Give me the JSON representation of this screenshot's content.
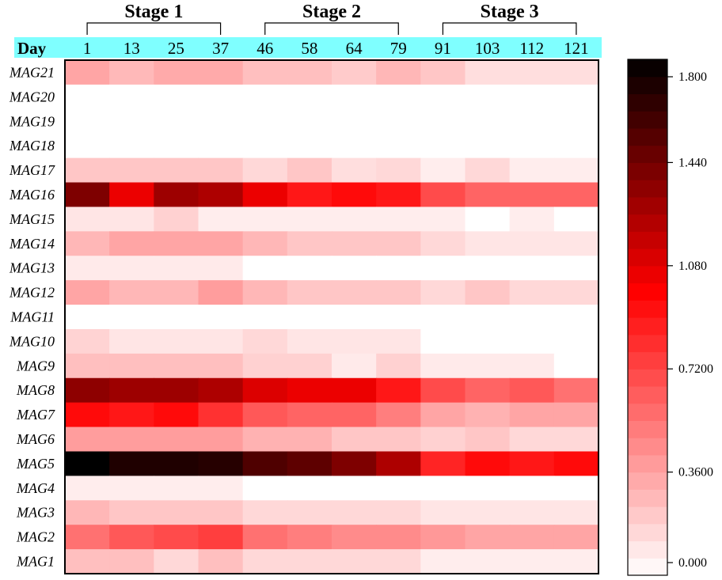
{
  "chart_data": {
    "type": "heatmap",
    "header_title": "Day",
    "stages": [
      {
        "label": "Stage 1",
        "from": 0,
        "to": 3
      },
      {
        "label": "Stage 2",
        "from": 4,
        "to": 7
      },
      {
        "label": "Stage 3",
        "from": 8,
        "to": 11
      }
    ],
    "x": [
      "1",
      "13",
      "25",
      "37",
      "46",
      "58",
      "64",
      "79",
      "91",
      "103",
      "112",
      "121"
    ],
    "y": [
      "MAG21",
      "MAG20",
      "MAG19",
      "MAG18",
      "MAG17",
      "MAG16",
      "MAG15",
      "MAG14",
      "MAG13",
      "MAG12",
      "MAG11",
      "MAG10",
      "MAG9",
      "MAG8",
      "MAG7",
      "MAG6",
      "MAG5",
      "MAG4",
      "MAG3",
      "MAG2",
      "MAG1"
    ],
    "values": [
      [
        0.35,
        0.27,
        0.33,
        0.33,
        0.25,
        0.25,
        0.2,
        0.28,
        0.22,
        0.13,
        0.13,
        0.13
      ],
      [
        0,
        0,
        0,
        0,
        0,
        0,
        0,
        0,
        0,
        0,
        0,
        0
      ],
      [
        0,
        0,
        0,
        0,
        0,
        0,
        0,
        0,
        0,
        0,
        0,
        0
      ],
      [
        0,
        0,
        0,
        0,
        0,
        0,
        0,
        0,
        0,
        0,
        0,
        0
      ],
      [
        0.22,
        0.22,
        0.22,
        0.22,
        0.15,
        0.22,
        0.13,
        0.15,
        0.07,
        0.15,
        0.07,
        0.07
      ],
      [
        1.4,
        1.05,
        1.3,
        1.25,
        1.05,
        0.9,
        0.95,
        0.9,
        0.7,
        0.6,
        0.6,
        0.6
      ],
      [
        0.1,
        0.1,
        0.18,
        0.07,
        0.07,
        0.07,
        0.07,
        0.07,
        0.07,
        0.0,
        0.07,
        0.0
      ],
      [
        0.28,
        0.35,
        0.35,
        0.35,
        0.28,
        0.22,
        0.22,
        0.22,
        0.15,
        0.1,
        0.1,
        0.1
      ],
      [
        0.08,
        0.08,
        0.08,
        0.08,
        0,
        0,
        0,
        0,
        0,
        0,
        0,
        0
      ],
      [
        0.35,
        0.28,
        0.28,
        0.38,
        0.28,
        0.22,
        0.22,
        0.22,
        0.15,
        0.22,
        0.15,
        0.15
      ],
      [
        0,
        0,
        0,
        0,
        0,
        0,
        0,
        0,
        0,
        0,
        0,
        0
      ],
      [
        0.17,
        0.1,
        0.1,
        0.1,
        0.15,
        0.1,
        0.1,
        0.1,
        0,
        0,
        0,
        0
      ],
      [
        0.25,
        0.25,
        0.25,
        0.25,
        0.18,
        0.18,
        0.08,
        0.18,
        0.08,
        0.08,
        0.08,
        0.0
      ],
      [
        1.35,
        1.3,
        1.3,
        1.25,
        1.1,
        1.05,
        1.05,
        0.9,
        0.7,
        0.6,
        0.65,
        0.55
      ],
      [
        0.95,
        0.9,
        0.95,
        0.8,
        0.65,
        0.6,
        0.6,
        0.5,
        0.35,
        0.3,
        0.35,
        0.35
      ],
      [
        0.38,
        0.38,
        0.38,
        0.38,
        0.3,
        0.3,
        0.22,
        0.22,
        0.18,
        0.22,
        0.15,
        0.15
      ],
      [
        1.8,
        1.7,
        1.7,
        1.68,
        1.55,
        1.5,
        1.4,
        1.25,
        0.85,
        0.95,
        0.9,
        0.95
      ],
      [
        0.07,
        0.07,
        0.07,
        0.07,
        0,
        0,
        0,
        0,
        0,
        0,
        0,
        0
      ],
      [
        0.28,
        0.22,
        0.22,
        0.22,
        0.15,
        0.15,
        0.15,
        0.15,
        0.1,
        0.1,
        0.1,
        0.1
      ],
      [
        0.55,
        0.65,
        0.7,
        0.75,
        0.55,
        0.5,
        0.45,
        0.45,
        0.4,
        0.35,
        0.35,
        0.35
      ],
      [
        0.25,
        0.25,
        0.15,
        0.25,
        0.15,
        0.15,
        0.15,
        0.15,
        0.07,
        0.07,
        0.07,
        0.07
      ]
    ],
    "colorbar": {
      "min": 0,
      "max": 1.8,
      "ticks": [
        0,
        0.36,
        0.72,
        1.08,
        1.44,
        1.8
      ],
      "tick_labels": [
        "0.000",
        "0.3600",
        "0.7200",
        "1.080",
        "1.440",
        "1.800"
      ]
    },
    "colors": {
      "header_bg": "#7fffff",
      "low": "#ffffff",
      "mid": "#ff0000",
      "high": "#000000"
    }
  }
}
